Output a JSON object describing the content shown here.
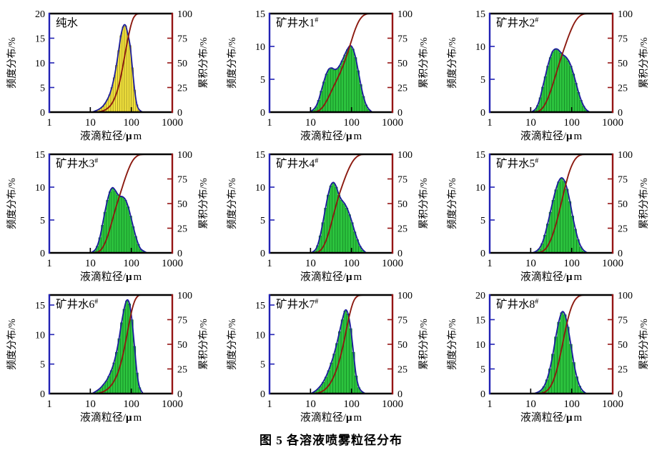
{
  "figure": {
    "caption": "图 5  各溶液喷雾粒径分布"
  },
  "shared_axes": {
    "xlabel_prefix": "液滴粒径/",
    "xlabel_mu": "μ",
    "xlabel_unit": "m",
    "ylabel_left": "频度分布/%",
    "ylabel_right": "累积分布/%",
    "x_scale": "log",
    "x_range": [
      1,
      1000
    ],
    "x_ticks": [
      "1",
      "10",
      "100",
      "1000"
    ],
    "right_range": [
      0,
      100
    ],
    "right_ticks": [
      0,
      25,
      50,
      75,
      100
    ],
    "grid": "off",
    "cumulative_series_note": "dark-red curve = normalized cumulative of freq_pct, plotted on right axis 0-100%"
  },
  "colors": {
    "background": "#ffffff",
    "frame": "#000000",
    "left_axis": "#2222b4",
    "right_axis": "#951414",
    "freq_curve": "#1c1c9c",
    "cum_curve": "#8c1a10",
    "text": "#000000",
    "yellow_fill": "#f0e03c",
    "yellow_edge": "#8f851f",
    "green_fill": "#2cc33e",
    "green_edge": "#0f7d20"
  },
  "chart_data": [
    {
      "type": "bar",
      "title": "纯水",
      "title_sup": "",
      "xlabel": "液滴粒径/μm",
      "ylabel": "频度分布/%",
      "y2label": "累积分布/%",
      "bar_style": "yellow",
      "ylim": [
        0,
        20
      ],
      "yticks": [
        0,
        5,
        10,
        15,
        20
      ],
      "bins_range_um": [
        13,
        165
      ],
      "freq_pct": [
        0.2,
        0.4,
        0.7,
        1.1,
        1.7,
        2.5,
        3.5,
        5.0,
        7.0,
        9.5,
        12.5,
        15.5,
        17.3,
        17.5,
        15.8,
        13.5,
        9.0,
        4.5,
        1.5,
        0.4
      ]
    },
    {
      "type": "bar",
      "title": "矿井水1",
      "title_sup": "#",
      "xlabel": "液滴粒径/μm",
      "ylabel": "频度分布/%",
      "y2label": "累积分布/%",
      "bar_style": "green",
      "ylim": [
        0,
        15
      ],
      "yticks": [
        0,
        5,
        10,
        15
      ],
      "bins_range_um": [
        11,
        280
      ],
      "freq_pct": [
        0.3,
        0.8,
        1.8,
        3.2,
        4.6,
        5.8,
        6.5,
        6.6,
        6.4,
        6.5,
        7.0,
        7.8,
        8.7,
        9.5,
        10.0,
        9.6,
        8.3,
        6.3,
        4.2,
        2.4,
        1.1,
        0.4
      ]
    },
    {
      "type": "bar",
      "title": "矿井水2",
      "title_sup": "#",
      "xlabel": "液滴粒径/μm",
      "ylabel": "频度分布/%",
      "y2label": "累积分布/%",
      "bar_style": "green",
      "ylim": [
        0,
        15
      ],
      "yticks": [
        0,
        5,
        10,
        15
      ],
      "bins_range_um": [
        12,
        240
      ],
      "freq_pct": [
        0.3,
        1.0,
        2.2,
        3.8,
        5.4,
        7.0,
        8.3,
        9.2,
        9.5,
        9.4,
        9.0,
        8.6,
        8.3,
        7.8,
        7.0,
        5.8,
        4.4,
        3.0,
        1.8,
        0.9,
        0.3
      ]
    },
    {
      "type": "bar",
      "title": "矿井水3",
      "title_sup": "#",
      "xlabel": "液滴粒径/μm",
      "ylabel": "频度分布/%",
      "y2label": "累积分布/%",
      "bar_style": "green",
      "ylim": [
        0,
        15
      ],
      "yticks": [
        0,
        5,
        10,
        15
      ],
      "bins_range_um": [
        12,
        210
      ],
      "freq_pct": [
        0.3,
        1.0,
        2.3,
        4.2,
        6.2,
        8.0,
        9.3,
        9.8,
        9.4,
        8.8,
        8.5,
        8.4,
        8.0,
        7.0,
        5.6,
        4.0,
        2.5,
        1.3,
        0.5,
        0.2
      ]
    },
    {
      "type": "bar",
      "title": "矿井水4",
      "title_sup": "#",
      "xlabel": "液滴粒径/μm",
      "ylabel": "频度分布/%",
      "y2label": "累积分布/%",
      "bar_style": "green",
      "ylim": [
        0,
        15
      ],
      "yticks": [
        0,
        5,
        10,
        15
      ],
      "bins_range_um": [
        12,
        200
      ],
      "freq_pct": [
        0.3,
        1.1,
        2.6,
        4.6,
        6.8,
        8.8,
        10.2,
        10.6,
        10.0,
        8.8,
        8.0,
        7.5,
        6.8,
        5.8,
        4.6,
        3.2,
        2.0,
        1.0,
        0.4
      ]
    },
    {
      "type": "bar",
      "title": "矿井水5",
      "title_sup": "#",
      "xlabel": "液滴粒径/μm",
      "ylabel": "频度分布/%",
      "y2label": "累积分布/%",
      "bar_style": "green",
      "ylim": [
        0,
        15
      ],
      "yticks": [
        0,
        5,
        10,
        15
      ],
      "bins_range_um": [
        13,
        210
      ],
      "freq_pct": [
        0.2,
        0.6,
        1.4,
        2.7,
        4.4,
        6.2,
        8.0,
        9.6,
        10.8,
        11.3,
        10.9,
        9.7,
        7.8,
        5.6,
        3.6,
        2.0,
        0.9,
        0.3
      ]
    },
    {
      "type": "bar",
      "title": "矿井水6",
      "title_sup": "#",
      "xlabel": "液滴粒径/μm",
      "ylabel": "频度分布/%",
      "y2label": "累积分布/%",
      "bar_style": "green",
      "ylim": [
        0,
        16.7
      ],
      "yticks": [
        0,
        5,
        10,
        15
      ],
      "bins_range_um": [
        13,
        170
      ],
      "freq_pct": [
        0.3,
        0.6,
        1.0,
        1.5,
        2.1,
        2.9,
        3.9,
        5.2,
        7.0,
        9.3,
        12.0,
        14.3,
        15.7,
        15.2,
        12.5,
        8.0,
        3.5,
        1.0
      ]
    },
    {
      "type": "bar",
      "title": "矿井水7",
      "title_sup": "#",
      "xlabel": "液滴粒径/μm",
      "ylabel": "频度分布/%",
      "y2label": "累积分布/%",
      "bar_style": "green",
      "ylim": [
        0,
        16.7
      ],
      "yticks": [
        0,
        5,
        10,
        15
      ],
      "bins_range_um": [
        12,
        190
      ],
      "freq_pct": [
        0.3,
        0.7,
        1.2,
        1.9,
        2.8,
        3.9,
        5.2,
        6.7,
        8.5,
        10.5,
        12.5,
        14.0,
        13.5,
        11.0,
        7.0,
        3.0,
        1.0,
        0.3
      ]
    },
    {
      "type": "bar",
      "title": "矿井水8",
      "title_sup": "#",
      "xlabel": "液滴粒径/μm",
      "ylabel": "频度分布/%",
      "y2label": "累积分布/%",
      "bar_style": "green",
      "ylim": [
        0,
        20
      ],
      "yticks": [
        0,
        5,
        10,
        15,
        20
      ],
      "bins_range_um": [
        14,
        200
      ],
      "freq_pct": [
        0.2,
        0.6,
        1.4,
        2.8,
        5.0,
        8.0,
        11.5,
        14.5,
        16.4,
        16.0,
        13.5,
        10.0,
        6.3,
        3.4,
        1.5,
        0.5
      ]
    }
  ]
}
